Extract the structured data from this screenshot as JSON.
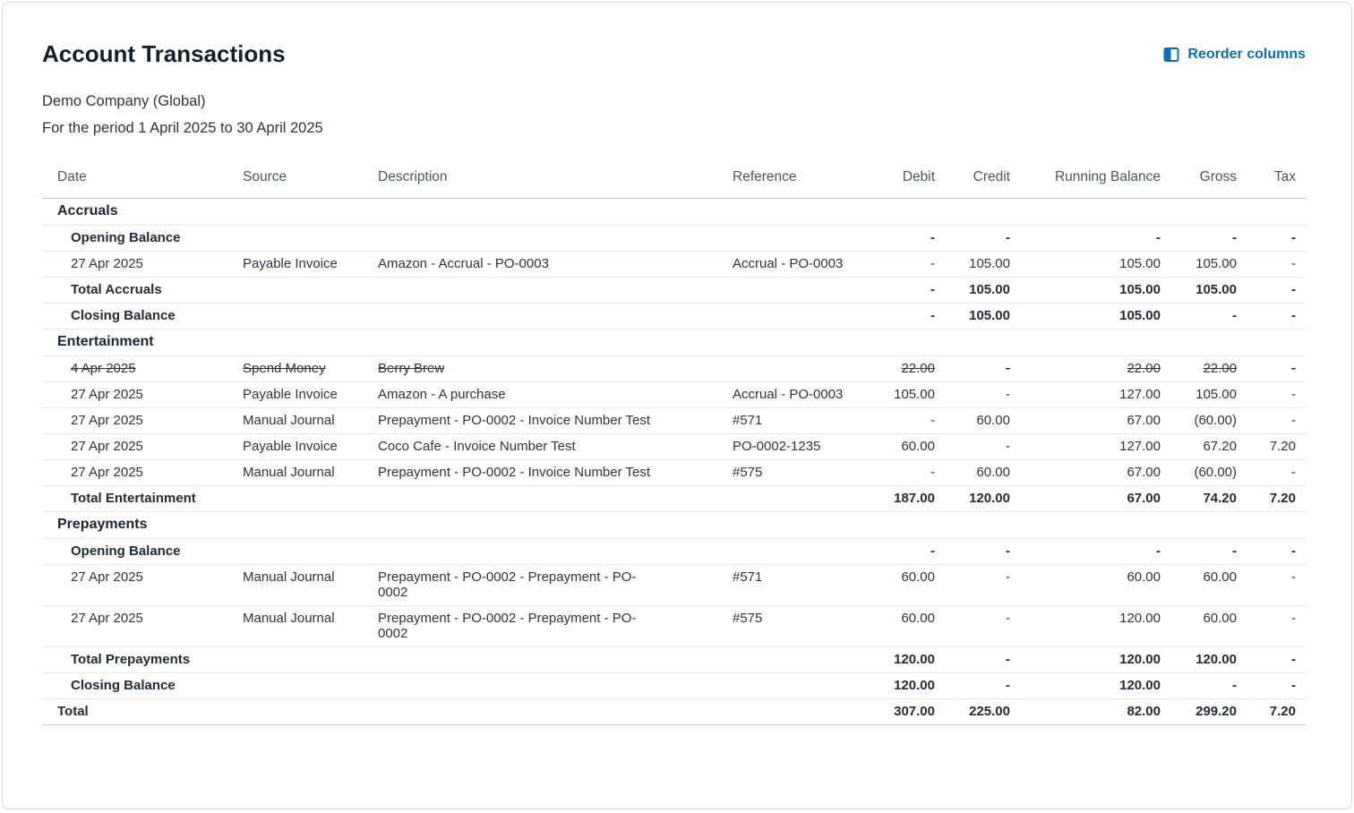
{
  "colors": {
    "accent": "#0D6EB8"
  },
  "header": {
    "title": "Account Transactions",
    "reorder_label": "Reorder columns",
    "company": "Demo Company (Global)",
    "period": "For the period 1 April 2025 to 30 April 2025"
  },
  "table": {
    "columns": [
      "Date",
      "Source",
      "Description",
      "Reference",
      "Debit",
      "Credit",
      "Running Balance",
      "Gross",
      "Tax"
    ],
    "sections": [
      {
        "name": "Accruals",
        "rows": [
          {
            "style": "summary",
            "date": "Opening Balance",
            "debit": "-",
            "credit": "-",
            "running_balance": "-",
            "gross": "-",
            "tax": "-"
          },
          {
            "style": "data",
            "date": "27 Apr 2025",
            "source": "Payable Invoice",
            "description": "Amazon - Accrual - PO-0003",
            "reference": "Accrual - PO-0003",
            "debit": "-",
            "credit": "105.00",
            "running_balance": "105.00",
            "gross": "105.00",
            "tax": "-"
          },
          {
            "style": "summary",
            "date": "Total Accruals",
            "debit": "-",
            "credit": "105.00",
            "running_balance": "105.00",
            "gross": "105.00",
            "tax": "-"
          },
          {
            "style": "summary",
            "date": "Closing Balance",
            "debit": "-",
            "credit": "105.00",
            "running_balance": "105.00",
            "gross": "-",
            "tax": "-"
          }
        ]
      },
      {
        "name": "Entertainment",
        "rows": [
          {
            "style": "data",
            "strikethrough": true,
            "date": "4 Apr 2025",
            "source": "Spend Money",
            "description": "Berry Brew",
            "reference": "",
            "debit": "22.00",
            "credit": "-",
            "running_balance": "22.00",
            "gross": "22.00",
            "tax": "-"
          },
          {
            "style": "data",
            "date": "27 Apr 2025",
            "source": "Payable Invoice",
            "description": "Amazon - A purchase",
            "reference": "Accrual - PO-0003",
            "debit": "105.00",
            "credit": "-",
            "running_balance": "127.00",
            "gross": "105.00",
            "tax": "-"
          },
          {
            "style": "data",
            "date": "27 Apr 2025",
            "source": "Manual Journal",
            "description": "Prepayment - PO-0002 - Invoice Number Test",
            "reference": "#571",
            "debit": "-",
            "credit": "60.00",
            "running_balance": "67.00",
            "gross": "(60.00)",
            "tax": "-"
          },
          {
            "style": "data",
            "date": "27 Apr 2025",
            "source": "Payable Invoice",
            "description": "Coco Cafe - Invoice Number Test",
            "reference": "PO-0002-1235",
            "debit": "60.00",
            "credit": "-",
            "running_balance": "127.00",
            "gross": "67.20",
            "tax": "7.20"
          },
          {
            "style": "data",
            "date": "27 Apr 2025",
            "source": "Manual Journal",
            "description": "Prepayment - PO-0002 - Invoice Number Test",
            "reference": "#575",
            "debit": "-",
            "credit": "60.00",
            "running_balance": "67.00",
            "gross": "(60.00)",
            "tax": "-"
          },
          {
            "style": "summary",
            "date": "Total Entertainment",
            "debit": "187.00",
            "credit": "120.00",
            "running_balance": "67.00",
            "gross": "74.20",
            "tax": "7.20"
          }
        ]
      },
      {
        "name": "Prepayments",
        "rows": [
          {
            "style": "summary",
            "date": "Opening Balance",
            "debit": "-",
            "credit": "-",
            "running_balance": "-",
            "gross": "-",
            "tax": "-"
          },
          {
            "style": "data",
            "date": "27 Apr 2025",
            "source": "Manual Journal",
            "description": "Prepayment - PO-0002 - Prepayment - PO-0002",
            "reference": "#571",
            "debit": "60.00",
            "credit": "-",
            "running_balance": "60.00",
            "gross": "60.00",
            "tax": "-"
          },
          {
            "style": "data",
            "date": "27 Apr 2025",
            "source": "Manual Journal",
            "description": "Prepayment - PO-0002 - Prepayment - PO-0002",
            "reference": "#575",
            "debit": "60.00",
            "credit": "-",
            "running_balance": "120.00",
            "gross": "60.00",
            "tax": "-"
          },
          {
            "style": "summary",
            "date": "Total Prepayments",
            "debit": "120.00",
            "credit": "-",
            "running_balance": "120.00",
            "gross": "120.00",
            "tax": "-"
          },
          {
            "style": "summary",
            "date": "Closing Balance",
            "debit": "120.00",
            "credit": "-",
            "running_balance": "120.00",
            "gross": "-",
            "tax": "-"
          }
        ]
      }
    ],
    "total_row": {
      "label": "Total",
      "debit": "307.00",
      "credit": "225.00",
      "running_balance": "82.00",
      "gross": "299.20",
      "tax": "7.20"
    }
  }
}
